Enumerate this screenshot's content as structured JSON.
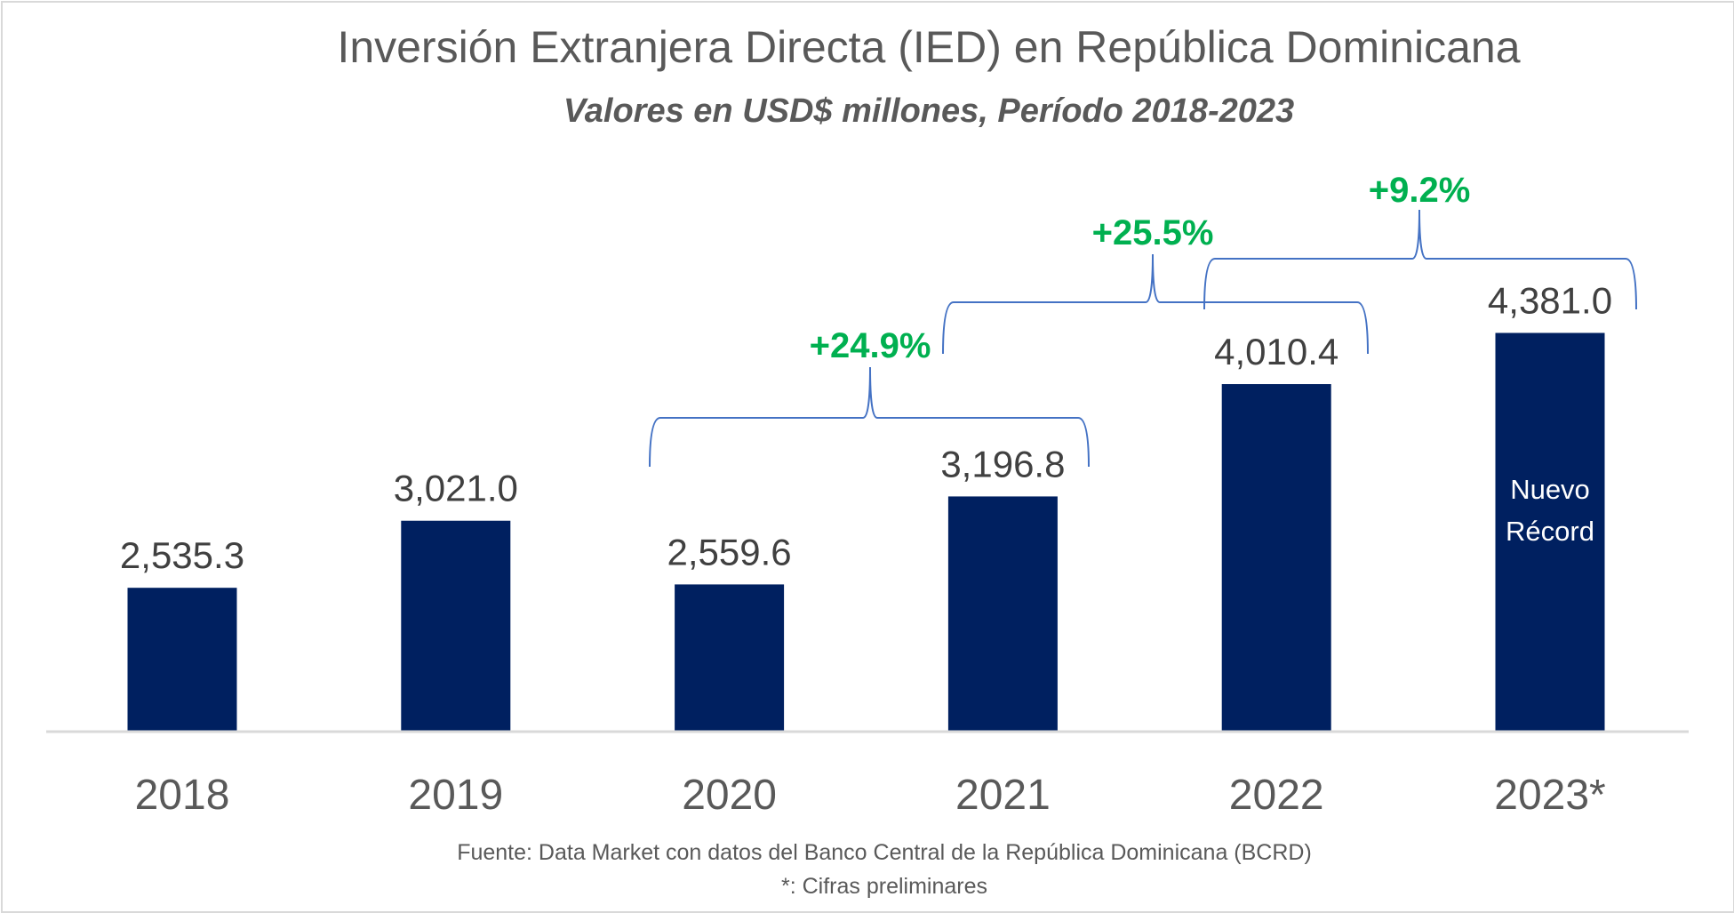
{
  "chart_data": {
    "type": "bar",
    "title": "Inversión Extranjera Directa (IED) en República Dominicana",
    "subtitle": "Valores en USD$ millones, Período 2018-2023",
    "categories": [
      "2018",
      "2019",
      "2020",
      "2021",
      "2022",
      "2023*"
    ],
    "values": [
      2535.3,
      3021.0,
      2559.6,
      3196.8,
      4010.4,
      4381.0
    ],
    "value_labels": [
      "2,535.3",
      "3,021.0",
      "2,559.6",
      "3,196.8",
      "4,010.4",
      "4,381.0"
    ],
    "ylim": [
      1500,
      6000
    ],
    "grid": false,
    "bar_color": "#002060",
    "bar_annotation": {
      "category": "2023*",
      "lines": [
        "Nuevo",
        "Récord"
      ]
    },
    "growth_annotations": [
      {
        "from": "2020",
        "to": "2021",
        "label": "+24.9%"
      },
      {
        "from": "2021",
        "to": "2022",
        "label": "+25.5%"
      },
      {
        "from": "2022",
        "to": "2023*",
        "label": "+9.2%"
      }
    ],
    "annotation_color": "#00b050",
    "brace_color": "#4472c4"
  },
  "footer": {
    "source": "Fuente: Data Market con datos del Banco Central de la República Dominicana (BCRD)",
    "note": "*: Cifras preliminares"
  }
}
